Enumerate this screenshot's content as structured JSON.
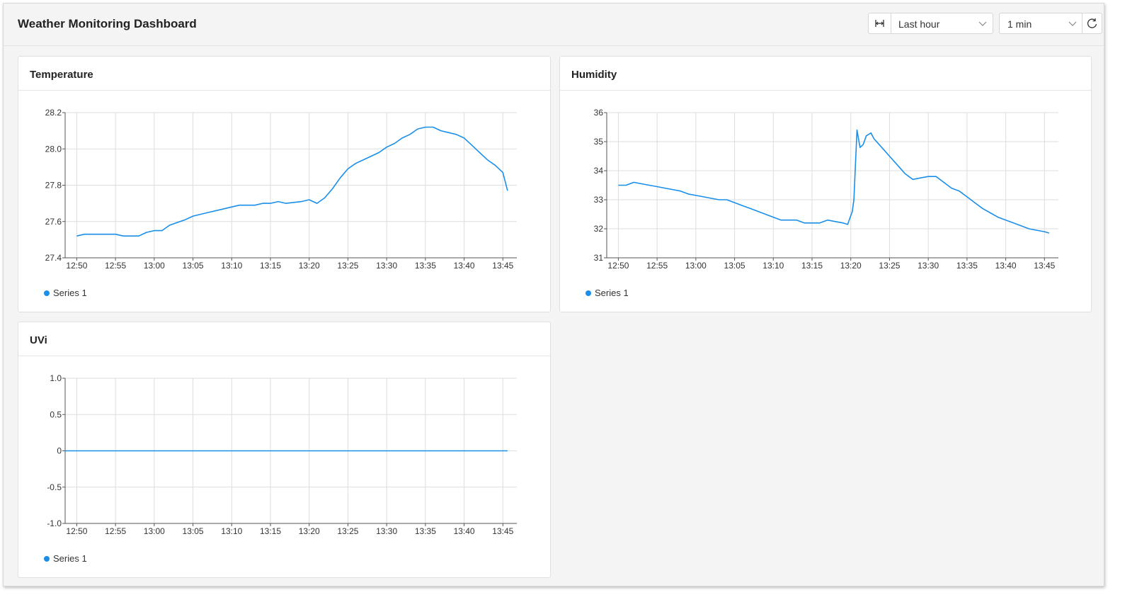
{
  "header": {
    "title": "Weather Monitoring Dashboard",
    "range_label": "Last hour",
    "interval_label": "1 min",
    "range_icon": "range-icon",
    "refresh_icon": "refresh-icon"
  },
  "colors": {
    "series": "#1a8fea",
    "grid": "#dddddd",
    "axis": "#555555"
  },
  "chart_data": [
    {
      "type": "line",
      "title": "Temperature",
      "xlabel": "",
      "ylabel": "",
      "xticks": [
        "12:50",
        "12:55",
        "13:00",
        "13:05",
        "13:10",
        "13:15",
        "13:20",
        "13:25",
        "13:30",
        "13:35",
        "13:40",
        "13:45"
      ],
      "yticks": [
        "27.4",
        "27.6",
        "27.8",
        "28.0",
        "28.2"
      ],
      "ylim": [
        27.4,
        28.2
      ],
      "xlim": [
        12.5,
        70.8
      ],
      "legend": "bottom-left",
      "series": [
        {
          "name": "Series 1",
          "x": [
            14,
            15,
            17,
            19,
            20,
            22,
            23,
            24,
            25,
            26,
            28,
            29,
            31,
            33,
            34,
            35,
            36,
            37,
            38,
            39,
            40,
            41,
            43,
            44,
            45,
            46,
            47,
            48,
            49,
            50,
            52,
            53,
            54,
            55,
            56,
            57,
            58,
            59,
            60,
            61,
            62,
            63,
            64,
            65,
            66,
            67,
            68,
            69,
            69.6
          ],
          "y": [
            27.52,
            27.53,
            27.53,
            27.53,
            27.52,
            27.52,
            27.54,
            27.55,
            27.55,
            27.58,
            27.61,
            27.63,
            27.65,
            27.67,
            27.68,
            27.69,
            27.69,
            27.69,
            27.7,
            27.7,
            27.71,
            27.7,
            27.71,
            27.72,
            27.7,
            27.73,
            27.78,
            27.84,
            27.89,
            27.92,
            27.96,
            27.98,
            28.01,
            28.03,
            28.06,
            28.08,
            28.11,
            28.12,
            28.12,
            28.1,
            28.09,
            28.08,
            28.06,
            28.02,
            27.98,
            27.94,
            27.91,
            27.87,
            27.77
          ]
        }
      ]
    },
    {
      "type": "line",
      "title": "Humidity",
      "xlabel": "",
      "ylabel": "",
      "xticks": [
        "12:50",
        "12:55",
        "13:00",
        "13:05",
        "13:10",
        "13:15",
        "13:20",
        "13:25",
        "13:30",
        "13:35",
        "13:40",
        "13:45"
      ],
      "yticks": [
        "31",
        "32",
        "33",
        "34",
        "35",
        "36"
      ],
      "ylim": [
        31,
        36
      ],
      "xlim": [
        12.5,
        70.8
      ],
      "legend": "bottom-left",
      "series": [
        {
          "name": "Series 1",
          "x": [
            14,
            15,
            16,
            17,
            18,
            19,
            20,
            21,
            22,
            23,
            24,
            25,
            26,
            27,
            28,
            29,
            30,
            31,
            32,
            33,
            34,
            35,
            36,
            37,
            38,
            39,
            40,
            41,
            42,
            43,
            43.6,
            44.2,
            44.4,
            44.8,
            45.2,
            45.6,
            46,
            46.6,
            47,
            48,
            49,
            50,
            51,
            52,
            53,
            54,
            55,
            56,
            57,
            58,
            59,
            60,
            61,
            62,
            63,
            64,
            65,
            66,
            67,
            68,
            69,
            69.6
          ],
          "y": [
            33.5,
            33.5,
            33.6,
            33.55,
            33.5,
            33.45,
            33.4,
            33.35,
            33.3,
            33.2,
            33.15,
            33.1,
            33.05,
            33.0,
            33.0,
            32.9,
            32.8,
            32.7,
            32.6,
            32.5,
            32.4,
            32.3,
            32.3,
            32.3,
            32.2,
            32.2,
            32.2,
            32.3,
            32.25,
            32.2,
            32.15,
            32.6,
            33.0,
            35.4,
            34.8,
            34.9,
            35.2,
            35.3,
            35.1,
            34.8,
            34.5,
            34.2,
            33.9,
            33.7,
            33.75,
            33.8,
            33.8,
            33.6,
            33.4,
            33.3,
            33.1,
            32.9,
            32.7,
            32.55,
            32.4,
            32.3,
            32.2,
            32.1,
            32.0,
            31.95,
            31.9,
            31.85
          ]
        }
      ]
    },
    {
      "type": "line",
      "title": "UVi",
      "xlabel": "",
      "ylabel": "",
      "xticks": [
        "12:50",
        "12:55",
        "13:00",
        "13:05",
        "13:10",
        "13:15",
        "13:20",
        "13:25",
        "13:30",
        "13:35",
        "13:40",
        "13:45"
      ],
      "yticks": [
        "-1.0",
        "-0.5",
        "0",
        "0.5",
        "1.0"
      ],
      "ylim": [
        -1.0,
        1.0
      ],
      "xlim": [
        12.5,
        70.8
      ],
      "legend": "bottom-left",
      "series": [
        {
          "name": "Series 1",
          "x": [
            12.5,
            69.6
          ],
          "y": [
            0,
            0
          ]
        }
      ]
    }
  ]
}
